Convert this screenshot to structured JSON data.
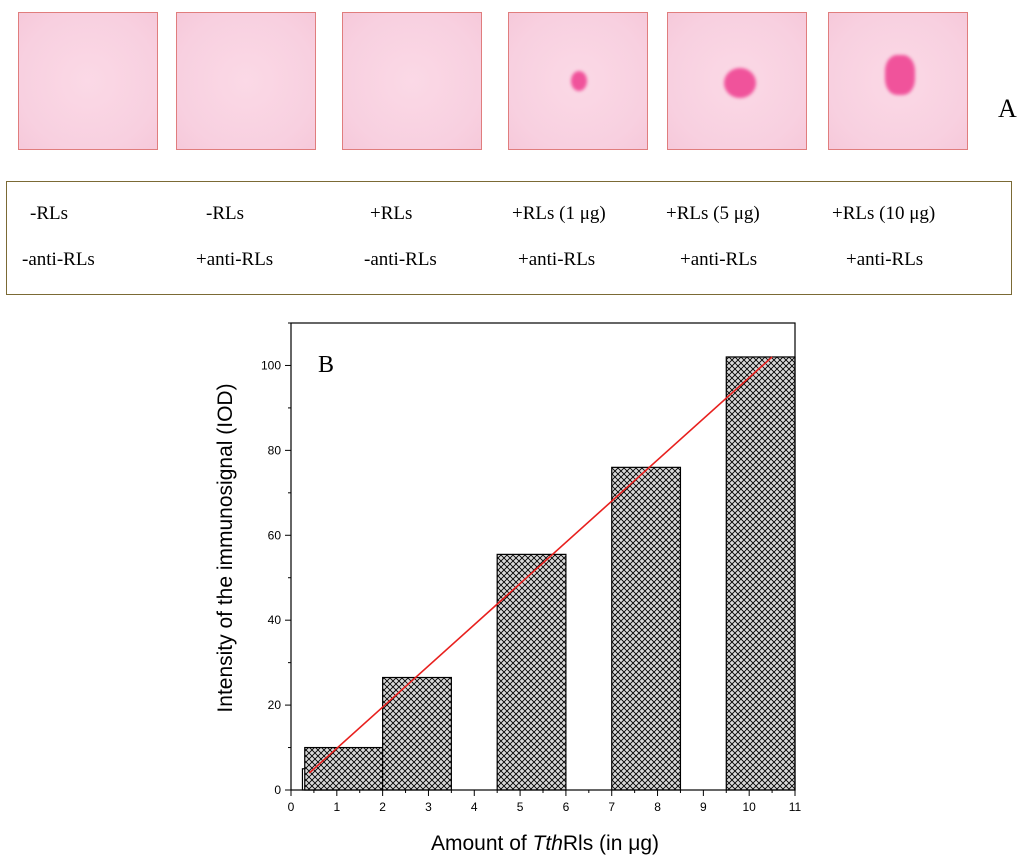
{
  "panel_a": {
    "label": "A",
    "conditions": [
      {
        "line1": "-RLs",
        "line2": "-anti-RLs"
      },
      {
        "line1": "-RLs",
        "line2": "+anti-RLs"
      },
      {
        "line1": "+RLs",
        "line2": "-anti-RLs"
      },
      {
        "line1": "+RLs (1 μg)",
        "line2": "+anti-RLs"
      },
      {
        "line1": "+RLs (5 μg)",
        "line2": "+anti-RLs"
      },
      {
        "line1": "+RLs (10 μg)",
        "line2": "+anti-RLs"
      }
    ],
    "spot_intensity": [
      0,
      0,
      0,
      0.35,
      0.7,
      0.9
    ]
  },
  "chart_data": {
    "type": "bar",
    "panel_label": "B",
    "xlabel_parts": [
      "Amount of ",
      "Tth",
      "Rls (in μg)"
    ],
    "ylabel": "Intensity of the immunosignal (IOD)",
    "xlim": [
      0,
      11
    ],
    "ylim": [
      0,
      110
    ],
    "x_ticks": [
      "0",
      "1",
      "2",
      "3",
      "4",
      "5",
      "6",
      "7",
      "8",
      "9",
      "10",
      "11"
    ],
    "y_ticks": [
      "0",
      "20",
      "40",
      "60",
      "80",
      "100"
    ],
    "bars": [
      {
        "x0": 0.25,
        "x1": 1.05,
        "value": 5,
        "fill": "none"
      },
      {
        "x0": 0.3,
        "x1": 2.0,
        "value": 10,
        "fill": "crosshatch"
      },
      {
        "x0": 2.0,
        "x1": 3.5,
        "value": 26.5,
        "fill": "crosshatch"
      },
      {
        "x0": 4.5,
        "x1": 6.0,
        "value": 55.5,
        "fill": "crosshatch"
      },
      {
        "x0": 7.0,
        "x1": 8.5,
        "value": 76,
        "fill": "crosshatch"
      },
      {
        "x0": 9.5,
        "x1": 11.0,
        "value": 102,
        "fill": "crosshatch"
      }
    ],
    "fit_line": {
      "x": [
        0.4,
        10.5
      ],
      "y": [
        4,
        102
      ],
      "color": "#e8201e"
    },
    "grid": false,
    "colors": {
      "bar_fill": "#d9d9d9",
      "hatch": "#000000",
      "fit_line": "#e8201e"
    }
  }
}
